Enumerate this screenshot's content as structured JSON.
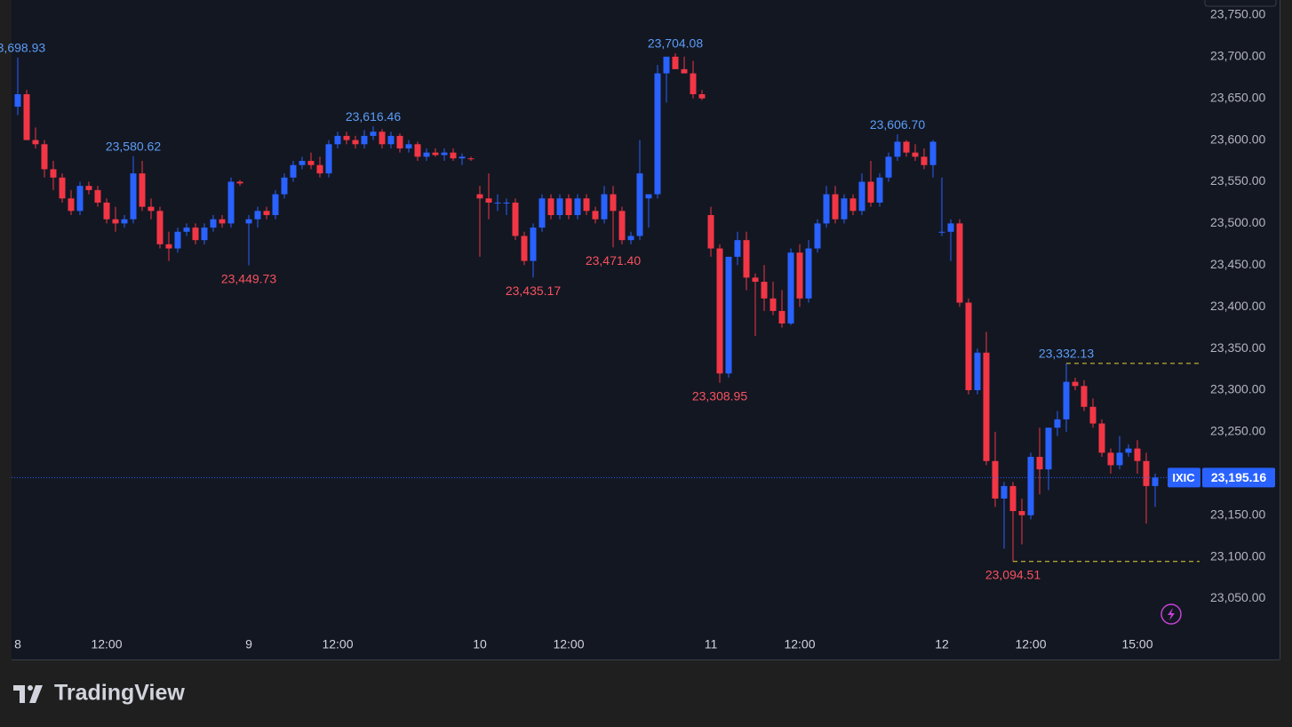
{
  "chart_data": {
    "type": "candlestick",
    "symbol": "IXIC",
    "up_color": "#2962ff",
    "down_color": "#f23645",
    "grid": true,
    "ylim": [
      22977,
      23768
    ],
    "xlim": [
      -0.7,
      133
    ],
    "yticks": [
      {
        "value": 23050,
        "label": "23,050.00"
      },
      {
        "value": 23100,
        "label": "23,100.00"
      },
      {
        "value": 23150,
        "label": "23,150.00"
      },
      {
        "value": 23200,
        "label": "23,200.00"
      },
      {
        "value": 23250,
        "label": "23,250.00"
      },
      {
        "value": 23300,
        "label": "23,300.00"
      },
      {
        "value": 23350,
        "label": "23,350.00"
      },
      {
        "value": 23400,
        "label": "23,400.00"
      },
      {
        "value": 23450,
        "label": "23,450.00"
      },
      {
        "value": 23500,
        "label": "23,500.00"
      },
      {
        "value": 23550,
        "label": "23,550.00"
      },
      {
        "value": 23600,
        "label": "23,600.00"
      },
      {
        "value": 23650,
        "label": "23,650.00"
      },
      {
        "value": 23700,
        "label": "23,700.00"
      },
      {
        "value": 23750,
        "label": "23,750.00"
      }
    ],
    "xticks": [
      {
        "value": 0,
        "label": "8"
      },
      {
        "value": 10,
        "label": "12:00"
      },
      {
        "value": 26,
        "label": "9"
      },
      {
        "value": 36,
        "label": "12:00"
      },
      {
        "value": 52,
        "label": "10"
      },
      {
        "value": 62,
        "label": "12:00"
      },
      {
        "value": 78,
        "label": "11"
      },
      {
        "value": 88,
        "label": "12:00"
      },
      {
        "value": 104,
        "label": "12"
      },
      {
        "value": 114,
        "label": "12:00"
      },
      {
        "value": 126,
        "label": "15:00"
      }
    ],
    "ohlc": [
      [
        23640,
        23698.93,
        23630,
        23655
      ],
      [
        23655,
        23660,
        23600,
        23600
      ],
      [
        23600,
        23615,
        23590,
        23595
      ],
      [
        23595,
        23600,
        23555,
        23565
      ],
      [
        23565,
        23575,
        23540,
        23555
      ],
      [
        23555,
        23560,
        23525,
        23530
      ],
      [
        23530,
        23540,
        23510,
        23515
      ],
      [
        23515,
        23550,
        23510,
        23545
      ],
      [
        23545,
        23550,
        23535,
        23540
      ],
      [
        23540,
        23545,
        23520,
        23525
      ],
      [
        23525,
        23530,
        23500,
        23505
      ],
      [
        23505,
        23520,
        23490,
        23500
      ],
      [
        23500,
        23510,
        23495,
        23505
      ],
      [
        23505,
        23580.62,
        23500,
        23560
      ],
      [
        23560,
        23575,
        23515,
        23520
      ],
      [
        23520,
        23530,
        23505,
        23515
      ],
      [
        23515,
        23520,
        23470,
        23475
      ],
      [
        23475,
        23490,
        23455,
        23470
      ],
      [
        23470,
        23495,
        23465,
        23490
      ],
      [
        23490,
        23500,
        23485,
        23495
      ],
      [
        23495,
        23500,
        23475,
        23480
      ],
      [
        23480,
        23500,
        23475,
        23495
      ],
      [
        23495,
        23510,
        23490,
        23505
      ],
      [
        23505,
        23510,
        23495,
        23500
      ],
      [
        23500,
        23555,
        23495,
        23550
      ],
      [
        23550,
        23552,
        23545,
        23548
      ],
      [
        23500,
        23510,
        23449.73,
        23505
      ],
      [
        23505,
        23520,
        23495,
        23515
      ],
      [
        23515,
        23520,
        23505,
        23510
      ],
      [
        23510,
        23540,
        23505,
        23535
      ],
      [
        23535,
        23560,
        23530,
        23555
      ],
      [
        23555,
        23575,
        23550,
        23570
      ],
      [
        23570,
        23580,
        23565,
        23575
      ],
      [
        23575,
        23585,
        23565,
        23570
      ],
      [
        23570,
        23580,
        23555,
        23560
      ],
      [
        23560,
        23600,
        23555,
        23595
      ],
      [
        23595,
        23610,
        23590,
        23605
      ],
      [
        23605,
        23610,
        23595,
        23600
      ],
      [
        23600,
        23605,
        23590,
        23595
      ],
      [
        23595,
        23612,
        23590,
        23605
      ],
      [
        23605,
        23616.46,
        23600,
        23610
      ],
      [
        23610,
        23613,
        23590,
        23595
      ],
      [
        23595,
        23610,
        23590,
        23605
      ],
      [
        23605,
        23608,
        23585,
        23590
      ],
      [
        23590,
        23600,
        23585,
        23595
      ],
      [
        23595,
        23598,
        23575,
        23580
      ],
      [
        23580,
        23590,
        23575,
        23585
      ],
      [
        23585,
        23590,
        23580,
        23582
      ],
      [
        23582,
        23590,
        23575,
        23585
      ],
      [
        23585,
        23590,
        23575,
        23578
      ],
      [
        23578,
        23584,
        23570,
        23580
      ],
      [
        23578,
        23580,
        23575,
        23577
      ],
      [
        23535,
        23545,
        23460,
        23530
      ],
      [
        23530,
        23560,
        23505,
        23525
      ],
      [
        23525,
        23535,
        23515,
        23525
      ],
      [
        23525,
        23530,
        23510,
        23525
      ],
      [
        23525,
        23530,
        23480,
        23485
      ],
      [
        23485,
        23490,
        23450,
        23455
      ],
      [
        23455,
        23500,
        23435.17,
        23495
      ],
      [
        23495,
        23535,
        23490,
        23530
      ],
      [
        23530,
        23535,
        23505,
        23510
      ],
      [
        23510,
        23535,
        23505,
        23530
      ],
      [
        23530,
        23535,
        23505,
        23510
      ],
      [
        23510,
        23535,
        23505,
        23530
      ],
      [
        23530,
        23535,
        23510,
        23515
      ],
      [
        23515,
        23520,
        23500,
        23505
      ],
      [
        23505,
        23545,
        23500,
        23535
      ],
      [
        23535,
        23545,
        23471.4,
        23515
      ],
      [
        23515,
        23520,
        23475,
        23480
      ],
      [
        23480,
        23490,
        23475,
        23485
      ],
      [
        23485,
        23600,
        23480,
        23560
      ],
      [
        23530,
        23535,
        23495,
        23535
      ],
      [
        23535,
        23690,
        23530,
        23680
      ],
      [
        23680,
        23700,
        23645,
        23700
      ],
      [
        23700,
        23704.08,
        23690,
        23685
      ],
      [
        23685,
        23700,
        23680,
        23680
      ],
      [
        23680,
        23695,
        23650,
        23655
      ],
      [
        23655,
        23660,
        23648,
        23650
      ],
      [
        23510,
        23520,
        23460,
        23470
      ],
      [
        23470,
        23475,
        23308.95,
        23320
      ],
      [
        23320,
        23460,
        23315,
        23460
      ],
      [
        23460,
        23490,
        23450,
        23480
      ],
      [
        23480,
        23490,
        23420,
        23435
      ],
      [
        23435,
        23440,
        23365,
        23430
      ],
      [
        23430,
        23450,
        23395,
        23410
      ],
      [
        23410,
        23430,
        23390,
        23395
      ],
      [
        23395,
        23420,
        23375,
        23380
      ],
      [
        23380,
        23470,
        23378,
        23465
      ],
      [
        23465,
        23475,
        23400,
        23410
      ],
      [
        23410,
        23480,
        23405,
        23470
      ],
      [
        23470,
        23505,
        23465,
        23500
      ],
      [
        23500,
        23545,
        23495,
        23535
      ],
      [
        23535,
        23545,
        23500,
        23505
      ],
      [
        23505,
        23535,
        23500,
        23530
      ],
      [
        23530,
        23535,
        23510,
        23515
      ],
      [
        23515,
        23560,
        23510,
        23550
      ],
      [
        23550,
        23575,
        23520,
        23525
      ],
      [
        23525,
        23560,
        23520,
        23555
      ],
      [
        23555,
        23585,
        23550,
        23580
      ],
      [
        23580,
        23606.7,
        23575,
        23598
      ],
      [
        23598,
        23600,
        23580,
        23585
      ],
      [
        23585,
        23595,
        23575,
        23580
      ],
      [
        23580,
        23590,
        23565,
        23570
      ],
      [
        23570,
        23600,
        23555,
        23598
      ],
      [
        23490,
        23555,
        23485,
        23490
      ],
      [
        23490,
        23505,
        23455,
        23500
      ],
      [
        23500,
        23505,
        23400,
        23405
      ],
      [
        23405,
        23410,
        23295,
        23300
      ],
      [
        23300,
        23350,
        23295,
        23345
      ],
      [
        23345,
        23370,
        23210,
        23215
      ],
      [
        23215,
        23250,
        23160,
        23170
      ],
      [
        23170,
        23190,
        23110,
        23185
      ],
      [
        23185,
        23190,
        23094.51,
        23155
      ],
      [
        23155,
        23170,
        23115,
        23150
      ],
      [
        23150,
        23225,
        23145,
        23220
      ],
      [
        23220,
        23255,
        23175,
        23205
      ],
      [
        23205,
        23255,
        23180,
        23255
      ],
      [
        23255,
        23275,
        23245,
        23265
      ],
      [
        23265,
        23332.13,
        23250,
        23310
      ],
      [
        23310,
        23315,
        23300,
        23305
      ],
      [
        23305,
        23312,
        23275,
        23280
      ],
      [
        23280,
        23290,
        23255,
        23260
      ],
      [
        23260,
        23265,
        23220,
        23225
      ],
      [
        23225,
        23230,
        23200,
        23210
      ],
      [
        23210,
        23245,
        23205,
        23225
      ],
      [
        23225,
        23235,
        23220,
        23230
      ],
      [
        23230,
        23240,
        23200,
        23215
      ],
      [
        23215,
        23225,
        23140,
        23185
      ],
      [
        23185,
        23200,
        23160,
        23195.16
      ]
    ],
    "annotations": [
      {
        "x": 0,
        "value": 23698.93,
        "label": "23,698.93",
        "color": "#5b9cf6"
      },
      {
        "x": 13,
        "value": 23580.62,
        "label": "23,580.62",
        "color": "#5b9cf6"
      },
      {
        "x": 26,
        "value": 23449.73,
        "label": "23,449.73",
        "color": "#f7525f"
      },
      {
        "x": 40,
        "value": 23616.46,
        "label": "23,616.46",
        "color": "#5b9cf6"
      },
      {
        "x": 58,
        "value": 23435.17,
        "label": "23,435.17",
        "color": "#f7525f"
      },
      {
        "x": 67,
        "value": 23471.4,
        "label": "23,471.40",
        "color": "#f7525f"
      },
      {
        "x": 74,
        "value": 23704.08,
        "label": "23,704.08",
        "color": "#5b9cf6"
      },
      {
        "x": 79,
        "value": 23308.95,
        "label": "23,308.95",
        "color": "#f7525f"
      },
      {
        "x": 99,
        "value": 23606.7,
        "label": "23,606.70",
        "color": "#5b9cf6"
      },
      {
        "x": 112,
        "value": 23094.51,
        "label": "23,094.51",
        "color": "#f7525f",
        "dashed_line": true
      },
      {
        "x": 118,
        "value": 23332.13,
        "label": "23,332.13",
        "color": "#5b9cf6",
        "dashed_line": true
      }
    ],
    "last_price": {
      "value": 23195.16,
      "label": "23,195.16"
    },
    "footer": "TradingView"
  }
}
